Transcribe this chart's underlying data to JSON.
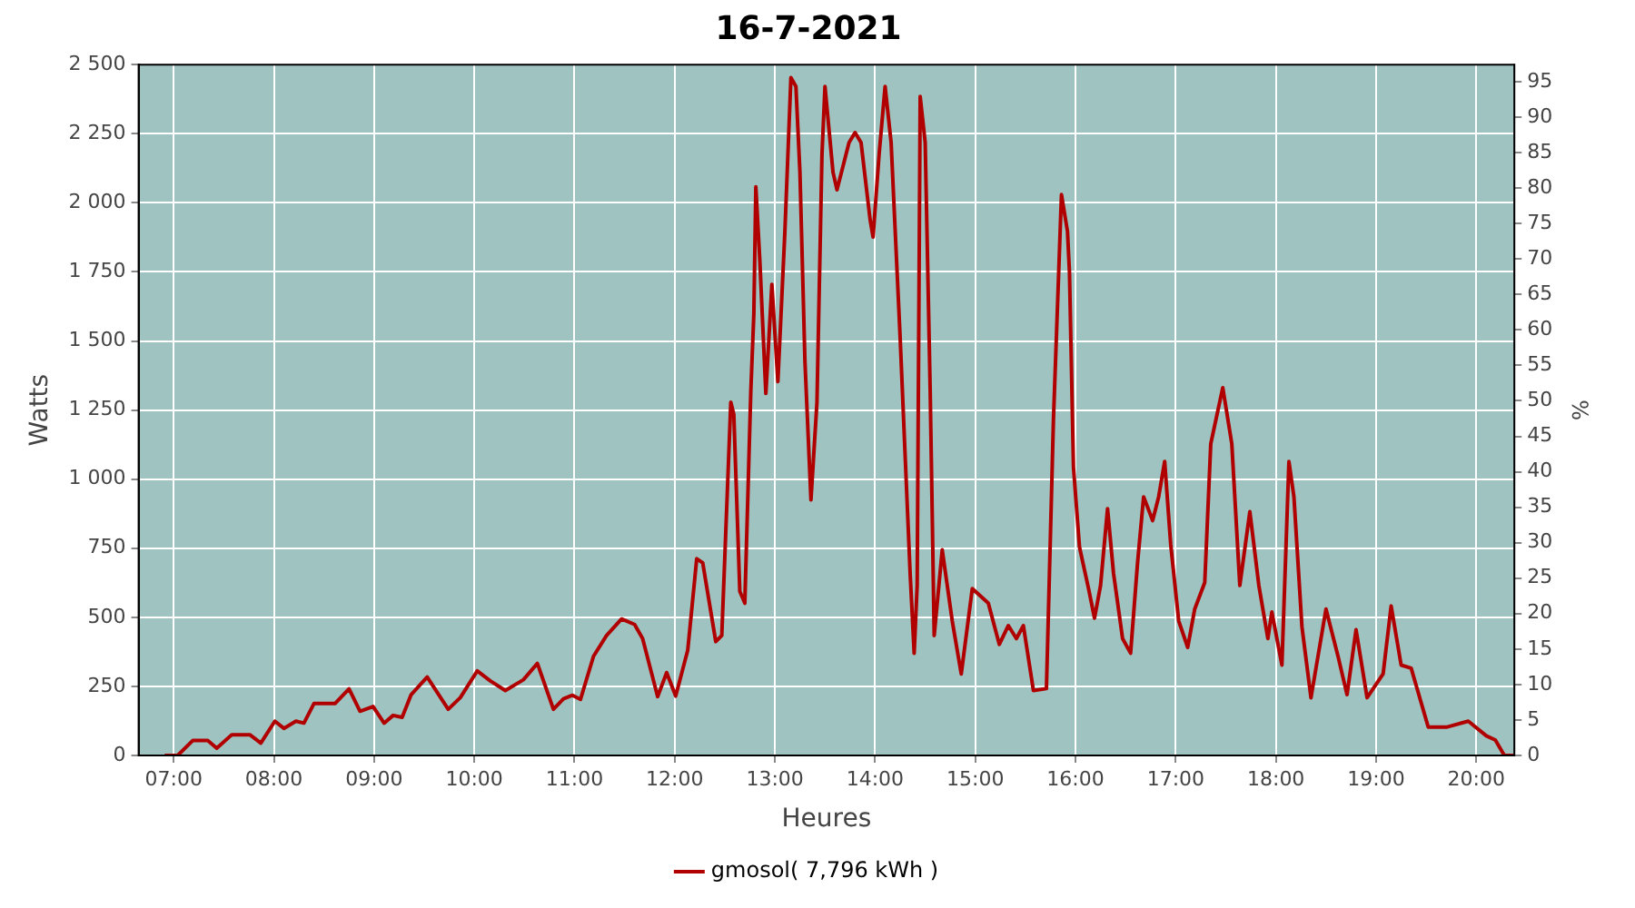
{
  "chart_data": {
    "type": "line",
    "title": "16-7-2021",
    "xlabel": "Heures",
    "ylabel": "Watts",
    "y2label": "%",
    "xlim": [
      6.65,
      20.38
    ],
    "xticks": [
      {
        "value": 7,
        "label": "07:00"
      },
      {
        "value": 8,
        "label": "08:00"
      },
      {
        "value": 9,
        "label": "09:00"
      },
      {
        "value": 10,
        "label": "10:00"
      },
      {
        "value": 11,
        "label": "11:00"
      },
      {
        "value": 12,
        "label": "12:00"
      },
      {
        "value": 13,
        "label": "13:00"
      },
      {
        "value": 14,
        "label": "14:00"
      },
      {
        "value": 15,
        "label": "15:00"
      },
      {
        "value": 16,
        "label": "16:00"
      },
      {
        "value": 17,
        "label": "17:00"
      },
      {
        "value": 18,
        "label": "18:00"
      },
      {
        "value": 19,
        "label": "19:00"
      },
      {
        "value": 20,
        "label": "20:00"
      }
    ],
    "ylim": [
      0,
      2500
    ],
    "yticks": [
      0,
      250,
      500,
      750,
      {
        "value": 1000,
        "label": "1 000"
      },
      {
        "value": 1250,
        "label": "1 250"
      },
      {
        "value": 1500,
        "label": "1 500"
      },
      {
        "value": 1750,
        "label": "1 750"
      },
      {
        "value": 2000,
        "label": "2 000"
      },
      {
        "value": 2250,
        "label": "2 250"
      },
      {
        "value": 2500,
        "label": "2 500"
      }
    ],
    "y2lim": [
      0,
      97.4
    ],
    "y2ticks": [
      0,
      5,
      10,
      15,
      20,
      25,
      30,
      35,
      40,
      45,
      50,
      55,
      60,
      65,
      70,
      75,
      80,
      85,
      90,
      95
    ],
    "grid": true,
    "legend": "bottom",
    "marker": "none",
    "line_style": "solid",
    "series": [
      {
        "name": "gmosol( 7,796 kWh )",
        "color": "#b00000",
        "x": [
          6.91,
          7.04,
          7.19,
          7.34,
          7.43,
          7.58,
          7.76,
          7.87,
          8.01,
          8.1,
          8.22,
          8.3,
          8.4,
          8.61,
          8.75,
          8.86,
          8.99,
          9.1,
          9.19,
          9.28,
          9.37,
          9.53,
          9.74,
          9.86,
          10.03,
          10.16,
          10.31,
          10.49,
          10.63,
          10.79,
          10.89,
          10.98,
          11.06,
          11.19,
          11.32,
          11.47,
          11.6,
          11.68,
          11.83,
          11.92,
          12.01,
          12.13,
          12.22,
          12.28,
          12.41,
          12.47,
          12.56,
          12.59,
          12.65,
          12.7,
          12.76,
          12.79,
          12.81,
          12.85,
          12.91,
          12.97,
          13.03,
          13.1,
          13.16,
          13.21,
          13.25,
          13.3,
          13.36,
          13.42,
          13.47,
          13.5,
          13.58,
          13.62,
          13.74,
          13.8,
          13.86,
          13.95,
          13.98,
          14.04,
          14.1,
          14.16,
          14.25,
          14.35,
          14.39,
          14.42,
          14.45,
          14.5,
          14.55,
          14.59,
          14.67,
          14.77,
          14.86,
          14.97,
          15.13,
          15.24,
          15.33,
          15.41,
          15.48,
          15.58,
          15.71,
          15.78,
          15.86,
          15.92,
          15.94,
          15.98,
          16.04,
          16.13,
          16.19,
          16.25,
          16.32,
          16.38,
          16.47,
          16.55,
          16.62,
          16.68,
          16.77,
          16.83,
          16.89,
          16.95,
          17.03,
          17.12,
          17.19,
          17.29,
          17.35,
          17.47,
          17.56,
          17.64,
          17.74,
          17.83,
          17.92,
          17.96,
          18.06,
          18.13,
          18.18,
          18.26,
          18.35,
          18.5,
          18.62,
          18.71,
          18.8,
          18.91,
          19.07,
          19.15,
          19.25,
          19.35,
          19.52,
          19.71,
          19.92,
          20.1,
          20.19,
          20.28,
          20.37
        ],
        "values": [
          0,
          0,
          54,
          54,
          26,
          75,
          75,
          45,
          124,
          98,
          124,
          117,
          188,
          188,
          241,
          160,
          177,
          117,
          145,
          138,
          220,
          284,
          167,
          209,
          306,
          270,
          235,
          274,
          333,
          167,
          205,
          218,
          203,
          359,
          434,
          494,
          474,
          423,
          213,
          300,
          215,
          380,
          712,
          697,
          412,
          434,
          1278,
          1235,
          594,
          551,
          1321,
          1598,
          2058,
          1790,
          1310,
          1705,
          1353,
          1897,
          2453,
          2421,
          2111,
          1427,
          925,
          1278,
          2175,
          2421,
          2111,
          2047,
          2218,
          2254,
          2218,
          1940,
          1876,
          2175,
          2421,
          2218,
          1513,
          658,
          370,
          615,
          2385,
          2218,
          1321,
          434,
          744,
          487,
          295,
          604,
          551,
          402,
          470,
          423,
          470,
          235,
          242,
          1214,
          2030,
          1897,
          1748,
          1043,
          754,
          604,
          497,
          615,
          893,
          658,
          423,
          370,
          700,
          936,
          850,
          936,
          1064,
          765,
          487,
          391,
          530,
          626,
          1128,
          1331,
          1128,
          615,
          882,
          615,
          423,
          519,
          327,
          1064,
          936,
          466,
          209,
          530,
          359,
          220,
          455,
          209,
          295,
          541,
          327,
          316,
          103,
          103,
          124,
          71,
          56,
          0,
          0
        ]
      }
    ]
  }
}
